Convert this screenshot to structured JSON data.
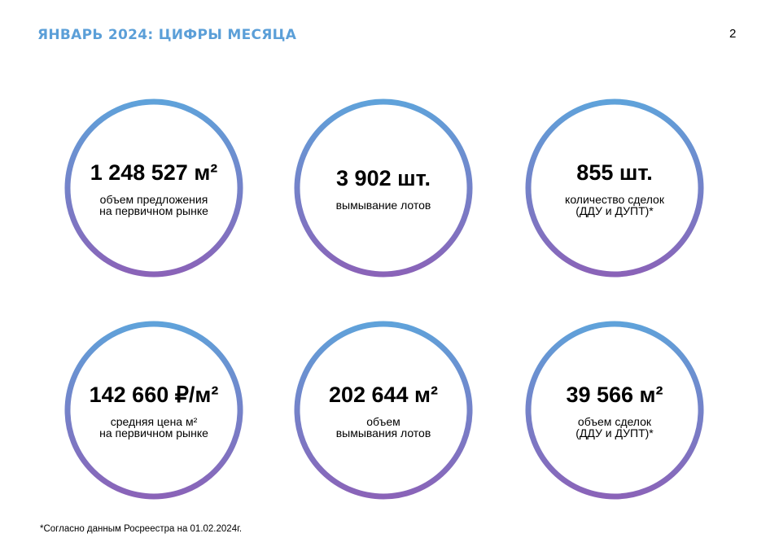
{
  "header": {
    "title": "ЯНВАРЬ 2024: ЦИФРЫ МЕСЯЦА",
    "page_number": "2"
  },
  "colors": {
    "title": "#5b9fd8",
    "ring_top": "#5fa2da",
    "ring_bottom": "#8a63b8"
  },
  "metrics": [
    {
      "value": "1 248 527 м²",
      "label_line1": "объем предложения",
      "label_line2": "на первичном рынке"
    },
    {
      "value": "3 902 шт.",
      "label_line1": "вымывание лотов",
      "label_line2": ""
    },
    {
      "value": "855 шт.",
      "label_line1": "количество сделок",
      "label_line2": "(ДДУ и ДУПТ)*"
    },
    {
      "value": "142 660 ₽/м²",
      "label_line1": "средняя цена м²",
      "label_line2": "на первичном рынке"
    },
    {
      "value": "202 644 м²",
      "label_line1": "объем",
      "label_line2": "вымывания лотов"
    },
    {
      "value": "39 566 м²",
      "label_line1": "объем сделок",
      "label_line2": "(ДДУ и ДУПТ)*"
    }
  ],
  "footnote": "*Согласно данным Росреестра на 01.02.2024г."
}
